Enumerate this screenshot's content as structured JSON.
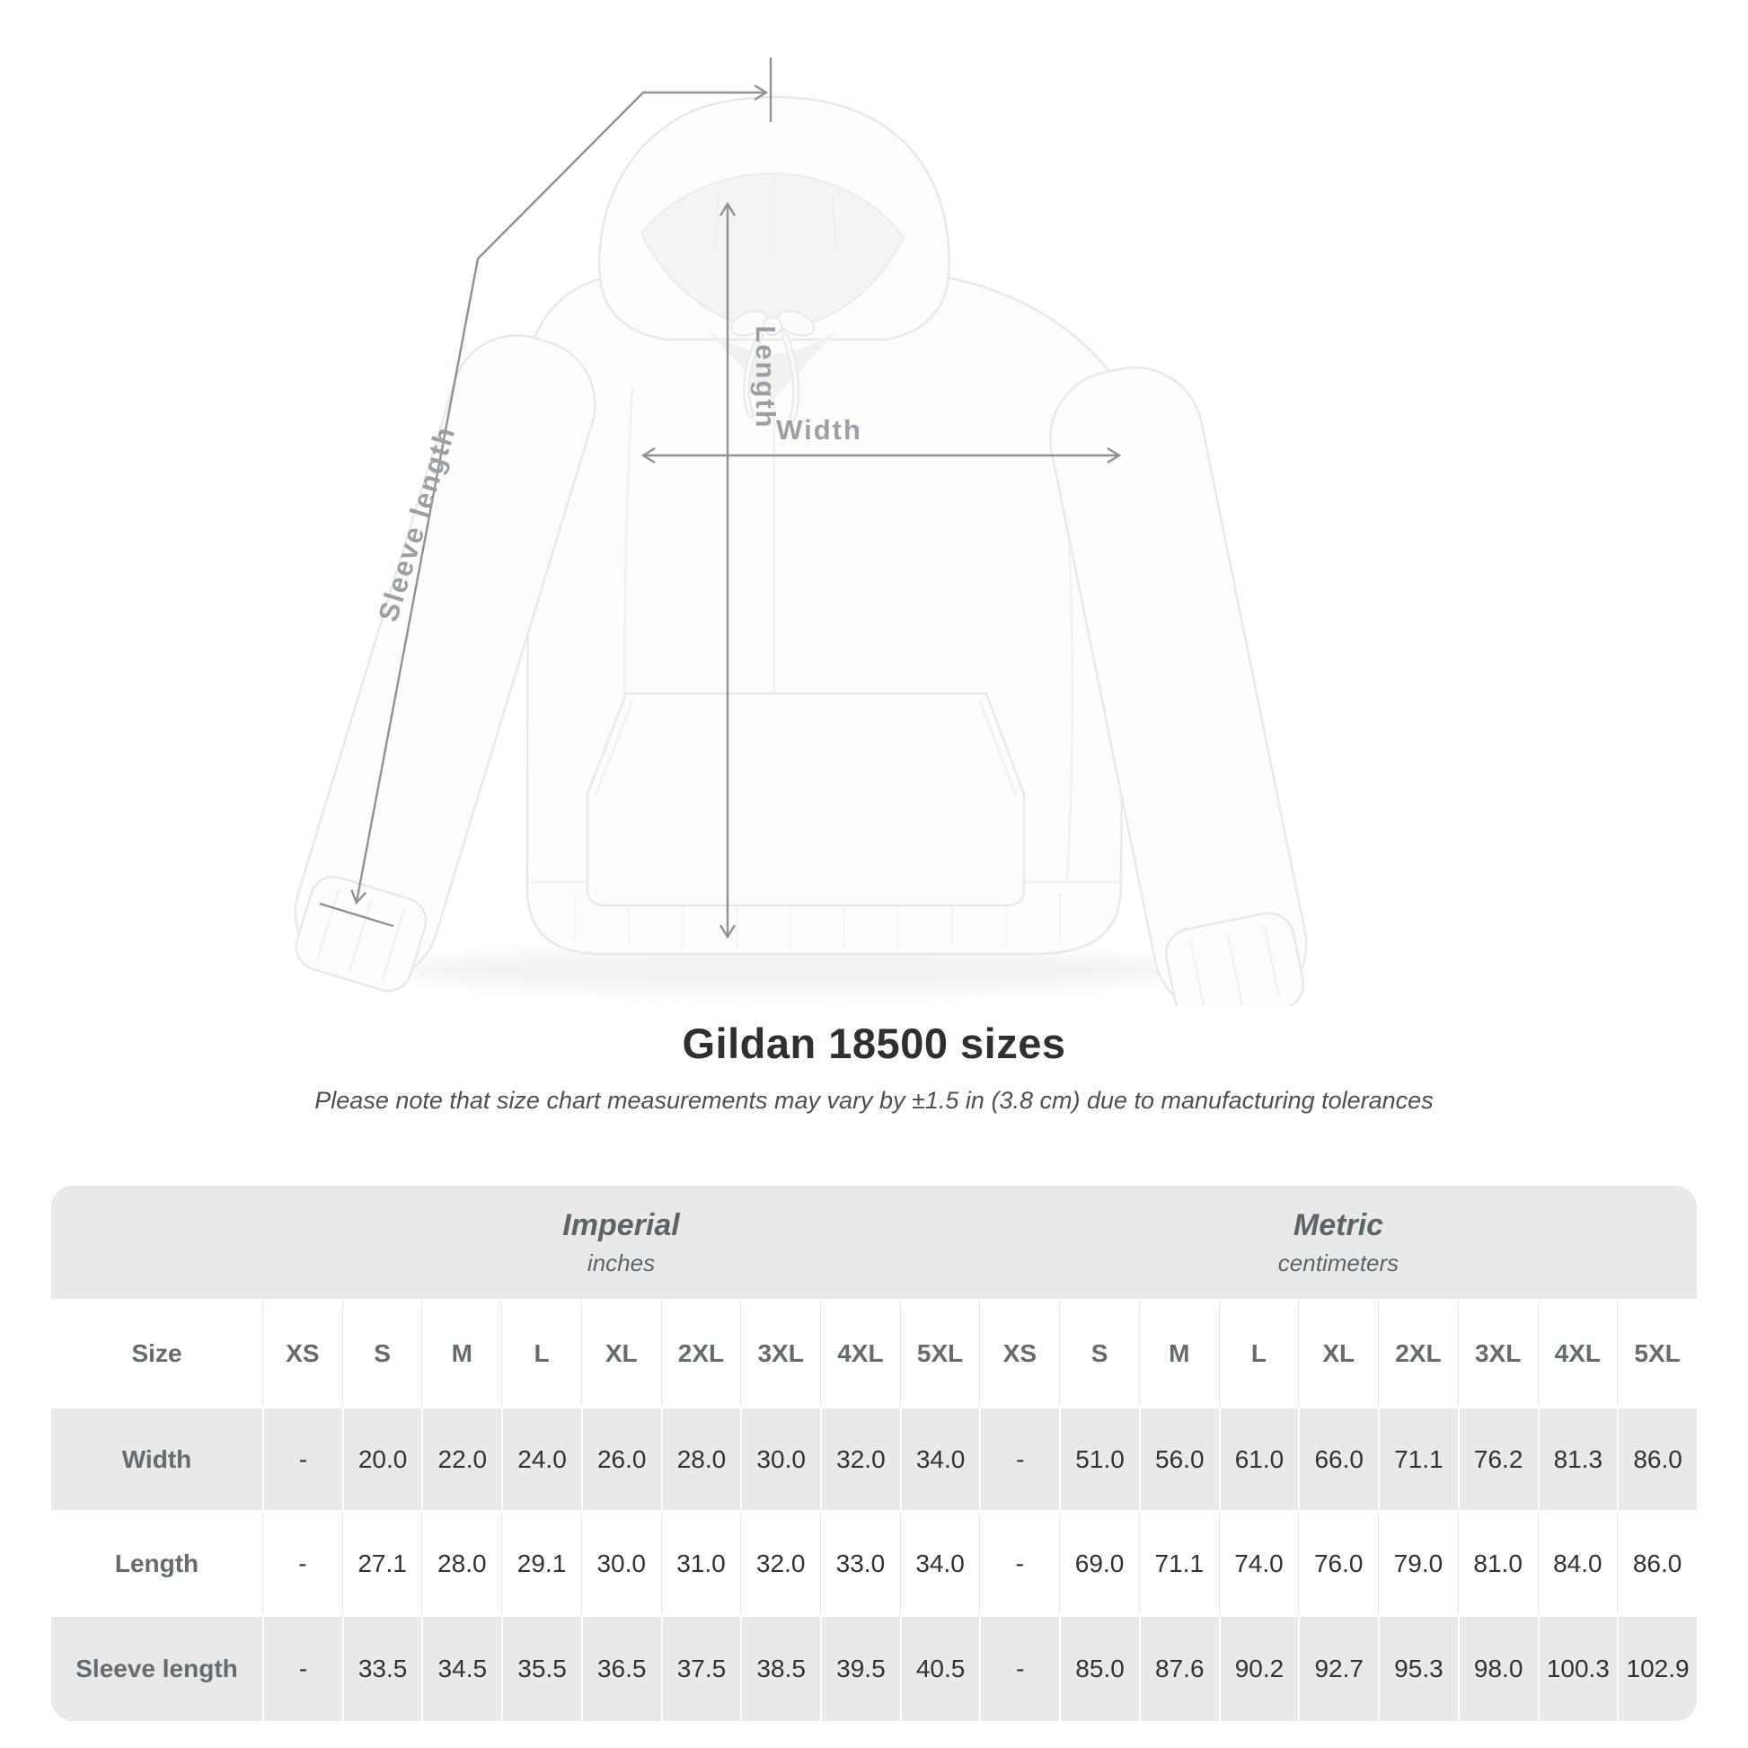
{
  "title": "Gildan 18500 sizes",
  "subtitle": "Please note that size chart measurements may vary by ±1.5 in (3.8 cm) due to manufacturing tolerances",
  "diagram": {
    "labels": {
      "length": "Length",
      "width": "Width",
      "sleeve": "Sleeve length"
    }
  },
  "chart_data": {
    "type": "table",
    "title": "Gildan 18500 sizes",
    "size_header": "Size",
    "groups": [
      {
        "label": "Imperial",
        "sublabel": "inches"
      },
      {
        "label": "Metric",
        "sublabel": "centimeters"
      }
    ],
    "sizes": [
      "XS",
      "S",
      "M",
      "L",
      "XL",
      "2XL",
      "3XL",
      "4XL",
      "5XL"
    ],
    "rows": [
      {
        "key": "width",
        "label": "Width",
        "imperial": [
          "-",
          "20.0",
          "22.0",
          "24.0",
          "26.0",
          "28.0",
          "30.0",
          "32.0",
          "34.0"
        ],
        "metric": [
          "-",
          "51.0",
          "56.0",
          "61.0",
          "66.0",
          "71.1",
          "76.2",
          "81.3",
          "86.0"
        ]
      },
      {
        "key": "length",
        "label": "Length",
        "imperial": [
          "-",
          "27.1",
          "28.0",
          "29.1",
          "30.0",
          "31.0",
          "32.0",
          "33.0",
          "34.0"
        ],
        "metric": [
          "-",
          "69.0",
          "71.1",
          "74.0",
          "76.0",
          "79.0",
          "81.0",
          "84.0",
          "86.0"
        ]
      },
      {
        "key": "sleeve_length",
        "label": "Sleeve length",
        "imperial": [
          "-",
          "33.5",
          "34.5",
          "35.5",
          "36.5",
          "37.5",
          "38.5",
          "39.5",
          "40.5"
        ],
        "metric": [
          "-",
          "85.0",
          "87.6",
          "90.2",
          "92.7",
          "95.3",
          "98.0",
          "100.3",
          "102.9"
        ]
      }
    ]
  },
  "colors": {
    "table_band": "#e9e9e9",
    "measure_line": "#8d9296",
    "diagram_label": "#9aa0a4",
    "title_text": "#2d2f30"
  }
}
